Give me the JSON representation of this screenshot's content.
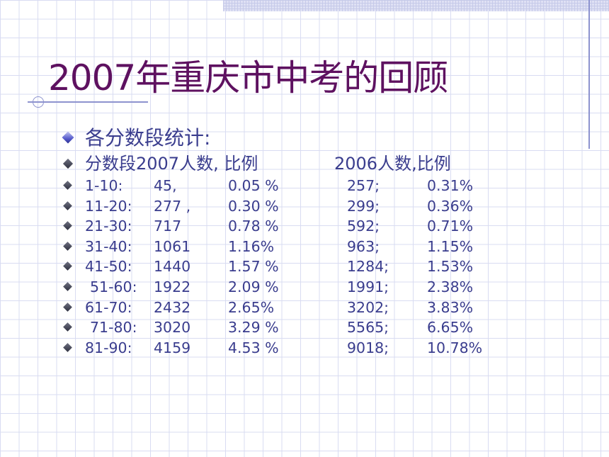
{
  "slide": {
    "title": "2007年重庆市中考的回顾",
    "subheading": "各分数段统计:",
    "header_left": "分数段2007人数, 比例",
    "header_right": "2006人数,比例"
  },
  "table": {
    "rows": [
      {
        "range": "1-10:",
        "count_2007": "45,",
        "pct_2007": "0.05 %",
        "count_2006": "257;",
        "pct_2006": "0.31%"
      },
      {
        "range": "11-20:",
        "count_2007": "277 ,",
        "pct_2007": "0.30 %",
        "count_2006": "299;",
        "pct_2006": "0.36%"
      },
      {
        "range": "21-30:",
        "count_2007": "717",
        "pct_2007": "0.78 %",
        "count_2006": "592;",
        "pct_2006": "0.71%"
      },
      {
        "range": "31-40:",
        "count_2007": "1061",
        "pct_2007": "1.16%",
        "count_2006": "963;",
        "pct_2006": "1.15%"
      },
      {
        "range": "41-50:",
        "count_2007": "1440",
        "pct_2007": "1.57 %",
        "count_2006": "1284;",
        "pct_2006": "1.53%"
      },
      {
        "range": "51-60:",
        "count_2007": "1922",
        "pct_2007": "2.09 %",
        "count_2006": "1991;",
        "pct_2006": "2.38%"
      },
      {
        "range": "61-70:",
        "count_2007": "2432",
        "pct_2007": "2.65%",
        "count_2006": "3202;",
        "pct_2006": "3.83%"
      },
      {
        "range": "71-80:",
        "count_2007": "3020",
        "pct_2007": "3.29 %",
        "count_2006": "5565;",
        "pct_2006": "6.65%"
      },
      {
        "range": "81-90:",
        "count_2007": "4159",
        "pct_2007": "4.53 %",
        "count_2006": "9018;",
        "pct_2006": "10.78%"
      }
    ]
  },
  "theme": {
    "title_color": "#5e1160",
    "text_color": "#3a3d8e",
    "grid_color": "#d9dcf2"
  }
}
